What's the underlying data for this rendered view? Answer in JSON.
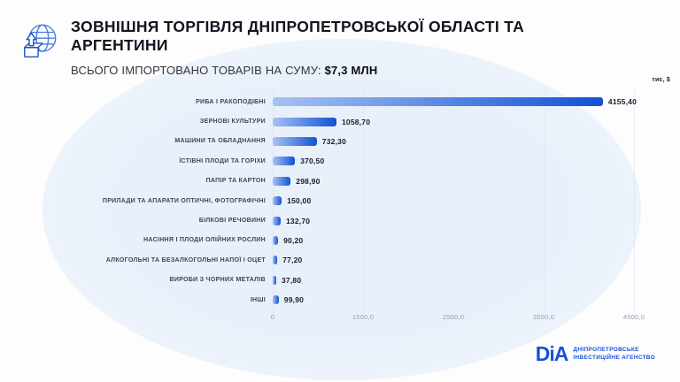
{
  "header": {
    "title": "ЗОВНІШНЯ ТОРГІВЛЯ ДНІПРОПЕТРОВСЬКОЇ ОБЛАСТІ ТА АРГЕНТИНИ",
    "subtitle_label": "ВСЬОГО ІМПОРТОВАНО ТОВАРІВ НА СУМУ:",
    "subtitle_value": "$7,3 млн"
  },
  "chart_data": {
    "type": "bar",
    "orientation": "horizontal",
    "unit_label": "тис, $",
    "categories": [
      "РИБА І РАКОПОДІБНІ",
      "ЗЕРНОВІ КУЛЬТУРИ",
      "МАШИНИ ТА ОБЛАДНАННЯ",
      "ЇСТІВНІ ПЛОДИ ТА ГОРІХИ",
      "ПАПІР ТА КАРТОН",
      "ПРИЛАДИ ТА АПАРАТИ ОПТИЧНІ, ФОТОГРАФІЧНІ",
      "БІЛКОВІ РЕЧОВИНИ",
      "НАСІННЯ І ПЛОДИ ОЛІЙНИХ РОСЛИН",
      "АЛКОГОЛЬНІ ТА БЕЗАЛКОГОЛЬНІ НАПОЇ І ОЦЕТ",
      "ВИРОБИ З ЧОРНИХ МЕТАЛІВ",
      "ІНШІ"
    ],
    "values": [
      4155.4,
      1058.7,
      732.3,
      370.5,
      298.9,
      150.0,
      132.7,
      90.2,
      77.2,
      37.8,
      99.9
    ],
    "value_labels": [
      "4155,40",
      "1058,70",
      "732,30",
      "370,50",
      "298,90",
      "150,00",
      "132,70",
      "90,20",
      "77,20",
      "37,80",
      "99,90"
    ],
    "axis_ticks": [
      {
        "label": "0",
        "value": 0
      },
      {
        "label": "1500,0",
        "value": 1500
      },
      {
        "label": "2500,0",
        "value": 2500
      },
      {
        "label": "3500,0",
        "value": 3500
      },
      {
        "label": "4500,0",
        "value": 4500
      }
    ],
    "axis_layout": "ticks evenly spaced (piecewise scale)",
    "grid": "vertical gridlines on",
    "legend": "none",
    "colors": {
      "bar_gradient_start": "#A6C2F3",
      "bar_gradient_end": "#1252D4",
      "background_blob": "#E9F1FB",
      "accent_blue": "#1B50D6"
    }
  },
  "logo": {
    "mark": "DiA",
    "line1": "ДНІПРОПЕТРОВСЬКЕ",
    "line2": "ІНВЕСТИЦІЙНЕ АГЕНСТВО"
  }
}
